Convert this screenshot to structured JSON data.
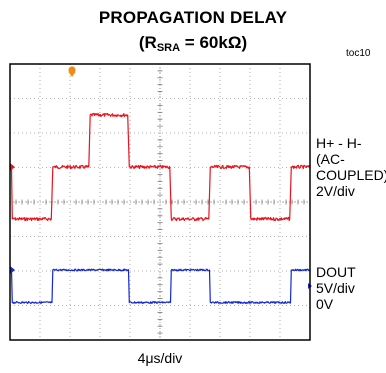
{
  "header": {
    "title": "PROPAGATION DELAY",
    "subtitle_prefix": "(R",
    "subtitle_sub": "SRA",
    "subtitle_suffix": " = 60kΩ)",
    "figure_id": "toc10"
  },
  "labels": {
    "trace1_line1": "H+ - H-",
    "trace1_line2": "(AC-",
    "trace1_line3": "COUPLED)",
    "trace1_scale": "2V/div",
    "trace2_name": "DOUT",
    "trace2_scale": "5V/div",
    "trace2_ref": "0V",
    "xlabel": "4μs/div"
  },
  "chart_data": {
    "type": "line",
    "x_unit": "μs",
    "xlim": [
      0,
      40
    ],
    "divisions": {
      "x": 10,
      "y": 8
    },
    "grid": true,
    "series": [
      {
        "name": "H+ - H-",
        "color": "#e8141e",
        "points": [
          [
            0,
            0
          ],
          [
            0.2,
            0
          ],
          [
            0.3,
            -4
          ],
          [
            5.5,
            -4
          ],
          [
            5.7,
            0
          ],
          [
            10.5,
            0
          ],
          [
            10.7,
            4
          ],
          [
            15.7,
            4
          ],
          [
            15.9,
            0
          ],
          [
            21.3,
            0
          ],
          [
            21.5,
            -4
          ],
          [
            26.5,
            -4
          ],
          [
            26.7,
            0
          ],
          [
            31.9,
            0
          ],
          [
            32.1,
            -4
          ],
          [
            37.3,
            -4
          ],
          [
            37.5,
            0
          ],
          [
            40,
            0
          ]
        ]
      },
      {
        "name": "DOUT",
        "color": "#1428d2",
        "points": [
          [
            0,
            0
          ],
          [
            0.2,
            0
          ],
          [
            0.3,
            -5
          ],
          [
            5.6,
            -5
          ],
          [
            5.7,
            0
          ],
          [
            15.8,
            0
          ],
          [
            15.9,
            -5
          ],
          [
            21.4,
            -5
          ],
          [
            21.5,
            0
          ],
          [
            26.6,
            0
          ],
          [
            26.7,
            -5
          ],
          [
            37.4,
            -5
          ],
          [
            37.5,
            0
          ],
          [
            40,
            0
          ]
        ]
      }
    ]
  }
}
